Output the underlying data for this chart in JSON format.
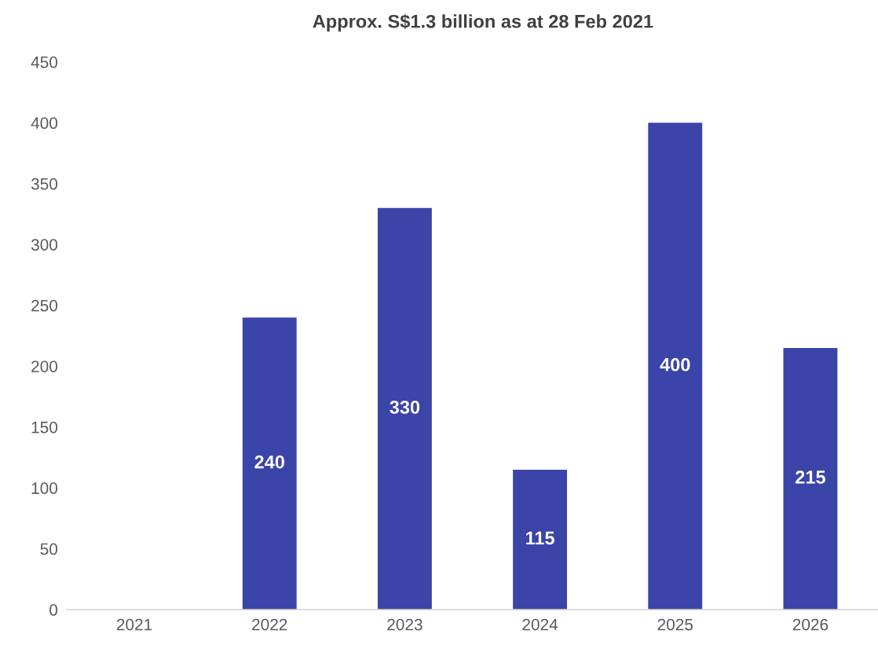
{
  "chart_data": {
    "type": "bar",
    "title": "Approx. S$1.3 billion as at 28 Feb 2021",
    "categories": [
      "2021",
      "2022",
      "2023",
      "2024",
      "2025",
      "2026"
    ],
    "values": [
      null,
      240,
      330,
      115,
      400,
      215
    ],
    "value_labels": [
      null,
      "240",
      "330",
      "115",
      "400",
      "215"
    ],
    "color": "#3b44a9",
    "ylim": [
      0,
      450
    ],
    "yticks": [
      0,
      50,
      100,
      150,
      200,
      250,
      300,
      350,
      400,
      450
    ]
  }
}
